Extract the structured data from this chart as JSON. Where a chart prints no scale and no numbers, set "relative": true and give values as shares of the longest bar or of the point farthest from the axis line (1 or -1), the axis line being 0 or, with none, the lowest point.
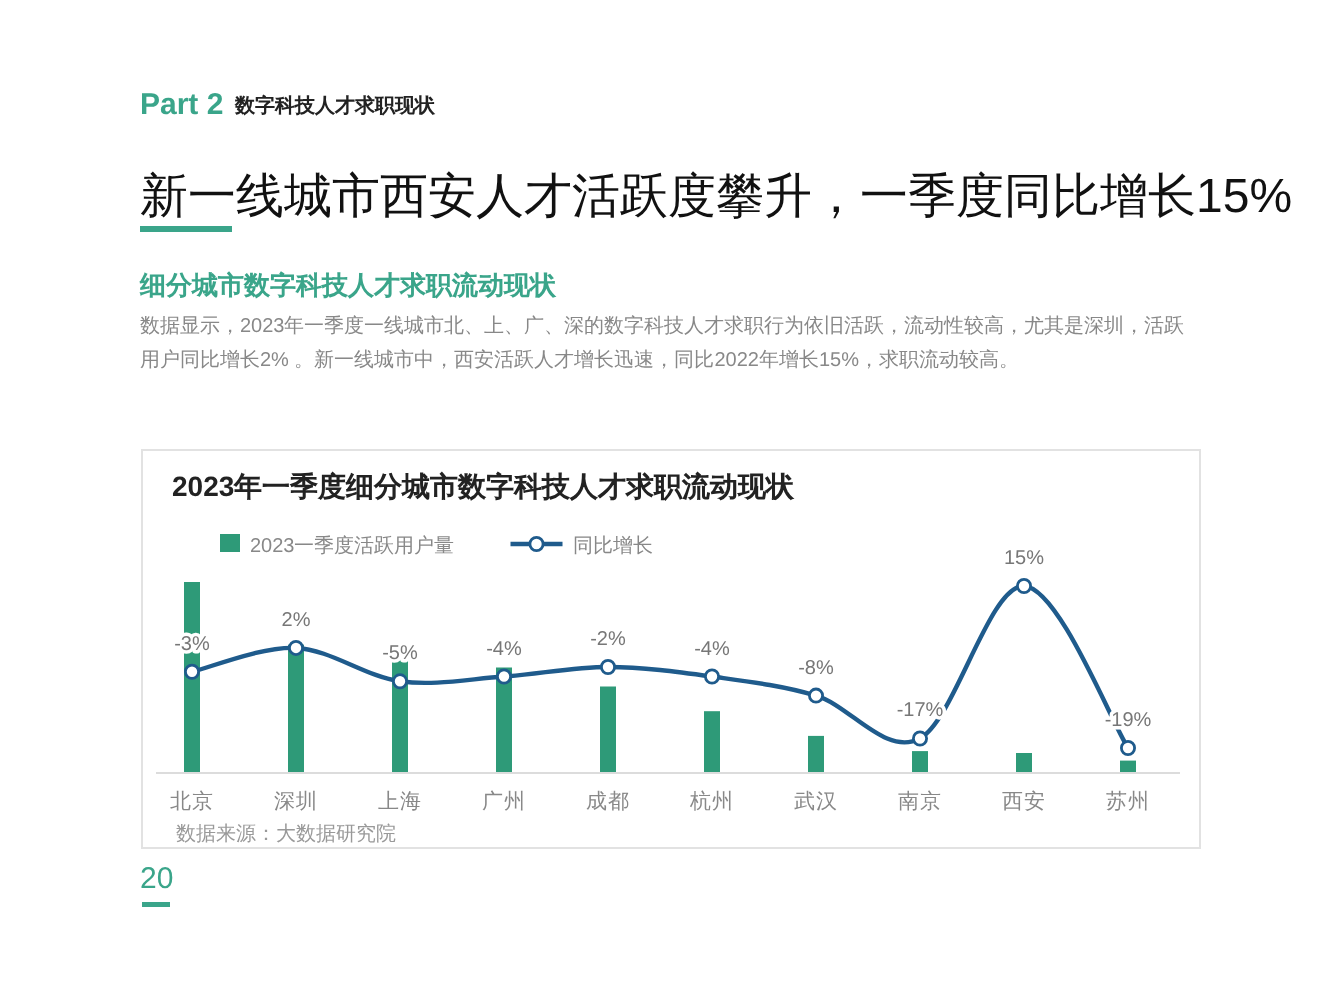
{
  "chart_data": [
    {
      "type": "bar",
      "title": "2023年一季度细分城市数字科技人才求职流动现状",
      "annotations": [
        "Part 2",
        "数字科技人才求职现状",
        "新一线城市西安人才活跃度攀升，一季度同比增长15%",
        "细分城市数字科技人才求职流动现状",
        "数据显示，2023年一季度一线城市北、上、广、深的数字科技人才求职行为依旧活跃，流动性较高，尤其是深圳，活跃用户同比增长2% 。新一线城市中，西安活跃人才增长迅速，同比2022年增长15%，求职流动较高。",
        "数据来源：大数据研究院",
        "20"
      ],
      "categories": [
        "北京",
        "深圳",
        "上海",
        "广州",
        "成都",
        "杭州",
        "武汉",
        "南京",
        "西安",
        "苏州"
      ],
      "relative": true,
      "legend": "top left",
      "series": [
        {
          "name": "2023一季度活跃用户量",
          "color": "#2e9a78",
          "values": [
            1,
            0.67,
            0.6,
            0.55,
            0.45,
            0.32,
            0.19,
            0.11,
            0.1,
            0.06
          ]
        }
      ]
    },
    {
      "type": "line",
      "categories": [
        null,
        null,
        null,
        null,
        null,
        null,
        null,
        null,
        null,
        null
      ],
      "legend": "top left",
      "marker": "circle",
      "series": [
        {
          "name": "同比增长",
          "color": "#1f5b8c",
          "values": [
            -3,
            2,
            -5,
            -4,
            -2,
            -4,
            -8,
            -17,
            15,
            -19
          ],
          "value_labels": [
            "-3%",
            "2%",
            "-5%",
            "-4%",
            "-2%",
            "-4%",
            "-8%",
            "-17%",
            "15%",
            "-19%"
          ]
        }
      ]
    }
  ]
}
